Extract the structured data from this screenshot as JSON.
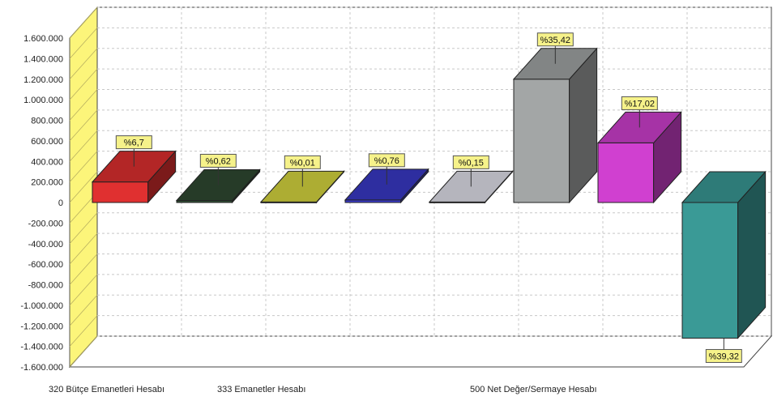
{
  "chart_data": {
    "type": "bar",
    "style": "3d",
    "title": "",
    "xlabel": "",
    "ylabel": "",
    "ylim": [
      -1600000,
      1600000
    ],
    "yticks": [
      1600000,
      1400000,
      1200000,
      1000000,
      800000,
      600000,
      400000,
      200000,
      0,
      -200000,
      -400000,
      -600000,
      -800000,
      -1000000,
      -1200000,
      -1400000,
      -1600000
    ],
    "ytick_labels": [
      "1.600.000",
      "1.400.000",
      "1.200.000",
      "1.000.000",
      "800.000",
      "600.000",
      "400.000",
      "200.000",
      "0",
      "-200.000",
      "-400.000",
      "-600.000",
      "-800.000",
      "-1.000.000",
      "-1.200.000",
      "-1.400.000",
      "-1.600.000"
    ],
    "category_labels": [
      "320 Bütçe Emanetleri Hesabı",
      "333 Emanetler Hesabı",
      "500 Net Değer/Sermaye Hesabı"
    ],
    "grid": true,
    "legend": "none",
    "bars": [
      {
        "value": 200000,
        "label": "%6,7",
        "color": "#e03030"
      },
      {
        "value": 20000,
        "label": "%0,62",
        "color": "#2f4a32"
      },
      {
        "value": 5000,
        "label": "%0,01",
        "color": "#d8d840"
      },
      {
        "value": 25000,
        "label": "%0,76",
        "color": "#3a3ac8"
      },
      {
        "value": 5000,
        "label": "%0,15",
        "color": "#e2e2ec"
      },
      {
        "value": 1200000,
        "label": "%35,42",
        "color": "#a3a6a6"
      },
      {
        "value": 580000,
        "label": "%17,02",
        "color": "#d040d0"
      },
      {
        "value": -1320000,
        "label": "%39,32",
        "color": "#3a9a96"
      }
    ]
  },
  "colors": {
    "wall_left": "#fcf57a",
    "label_box": "#f6f28a",
    "grid": "#c8c8c8"
  }
}
